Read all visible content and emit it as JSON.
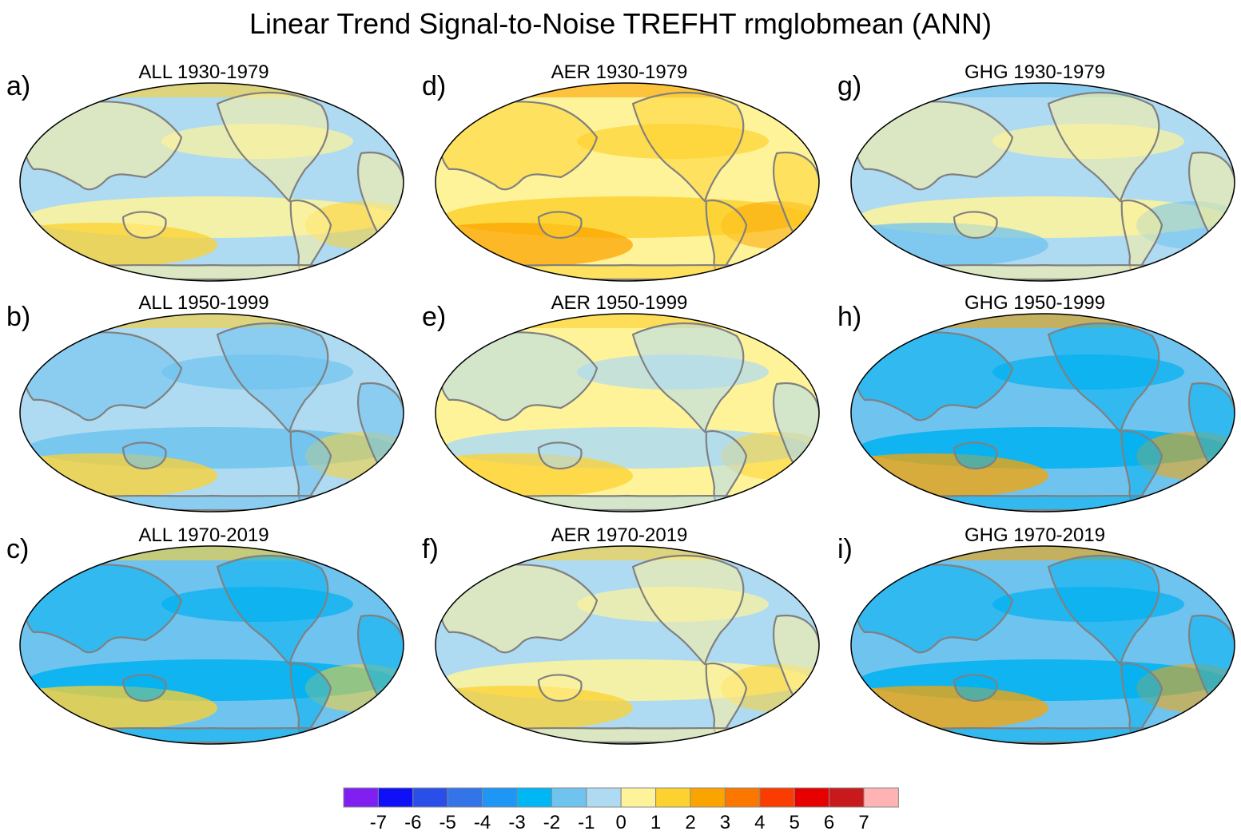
{
  "title": "Linear Trend Signal-to-Noise TREFHT rmglobmean (ANN)",
  "panels": [
    {
      "letter": "a)",
      "title": "ALL 1930-1979",
      "base": "#aedaf2",
      "alt": "#fff39a",
      "accent": "#fdd12f"
    },
    {
      "letter": "b)",
      "title": "ALL 1950-1999",
      "base": "#aedaf2",
      "alt": "#6fc3ef",
      "accent": "#fdd12f"
    },
    {
      "letter": "c)",
      "title": "ALL 1970-2019",
      "base": "#6fc3ef",
      "alt": "#00b1f0",
      "accent": "#fdd12f"
    },
    {
      "letter": "d)",
      "title": "AER 1930-1979",
      "base": "#fff39a",
      "alt": "#fdd12f",
      "accent": "#fba400"
    },
    {
      "letter": "e)",
      "title": "AER 1950-1999",
      "base": "#fff39a",
      "alt": "#aedaf2",
      "accent": "#fdd12f"
    },
    {
      "letter": "f)",
      "title": "AER 1970-2019",
      "base": "#aedaf2",
      "alt": "#fff39a",
      "accent": "#fdd12f"
    },
    {
      "letter": "g)",
      "title": "GHG 1930-1979",
      "base": "#aedaf2",
      "alt": "#fff39a",
      "accent": "#6fc3ef"
    },
    {
      "letter": "h)",
      "title": "GHG 1950-1999",
      "base": "#6fc3ef",
      "alt": "#00b1f0",
      "accent": "#fba400"
    },
    {
      "letter": "i)",
      "title": "GHG 1970-2019",
      "base": "#6fc3ef",
      "alt": "#00b1f0",
      "accent": "#fba400"
    }
  ],
  "colorbar": {
    "labels": [
      "-7",
      "-6",
      "-5",
      "-4",
      "-3",
      "-2",
      "-1",
      "0",
      "1",
      "2",
      "3",
      "4",
      "5",
      "6",
      "7"
    ],
    "colors": [
      "#8020f0",
      "#1010f8",
      "#2a4fe8",
      "#3374e8",
      "#1d96f5",
      "#00b7f5",
      "#6fc3ef",
      "#aedaf2",
      "#fff39a",
      "#fdd12f",
      "#fba400",
      "#fc7700",
      "#fb3c00",
      "#e60000",
      "#c8191c",
      "#ffb3b3"
    ]
  },
  "coastline_color": "#808080"
}
